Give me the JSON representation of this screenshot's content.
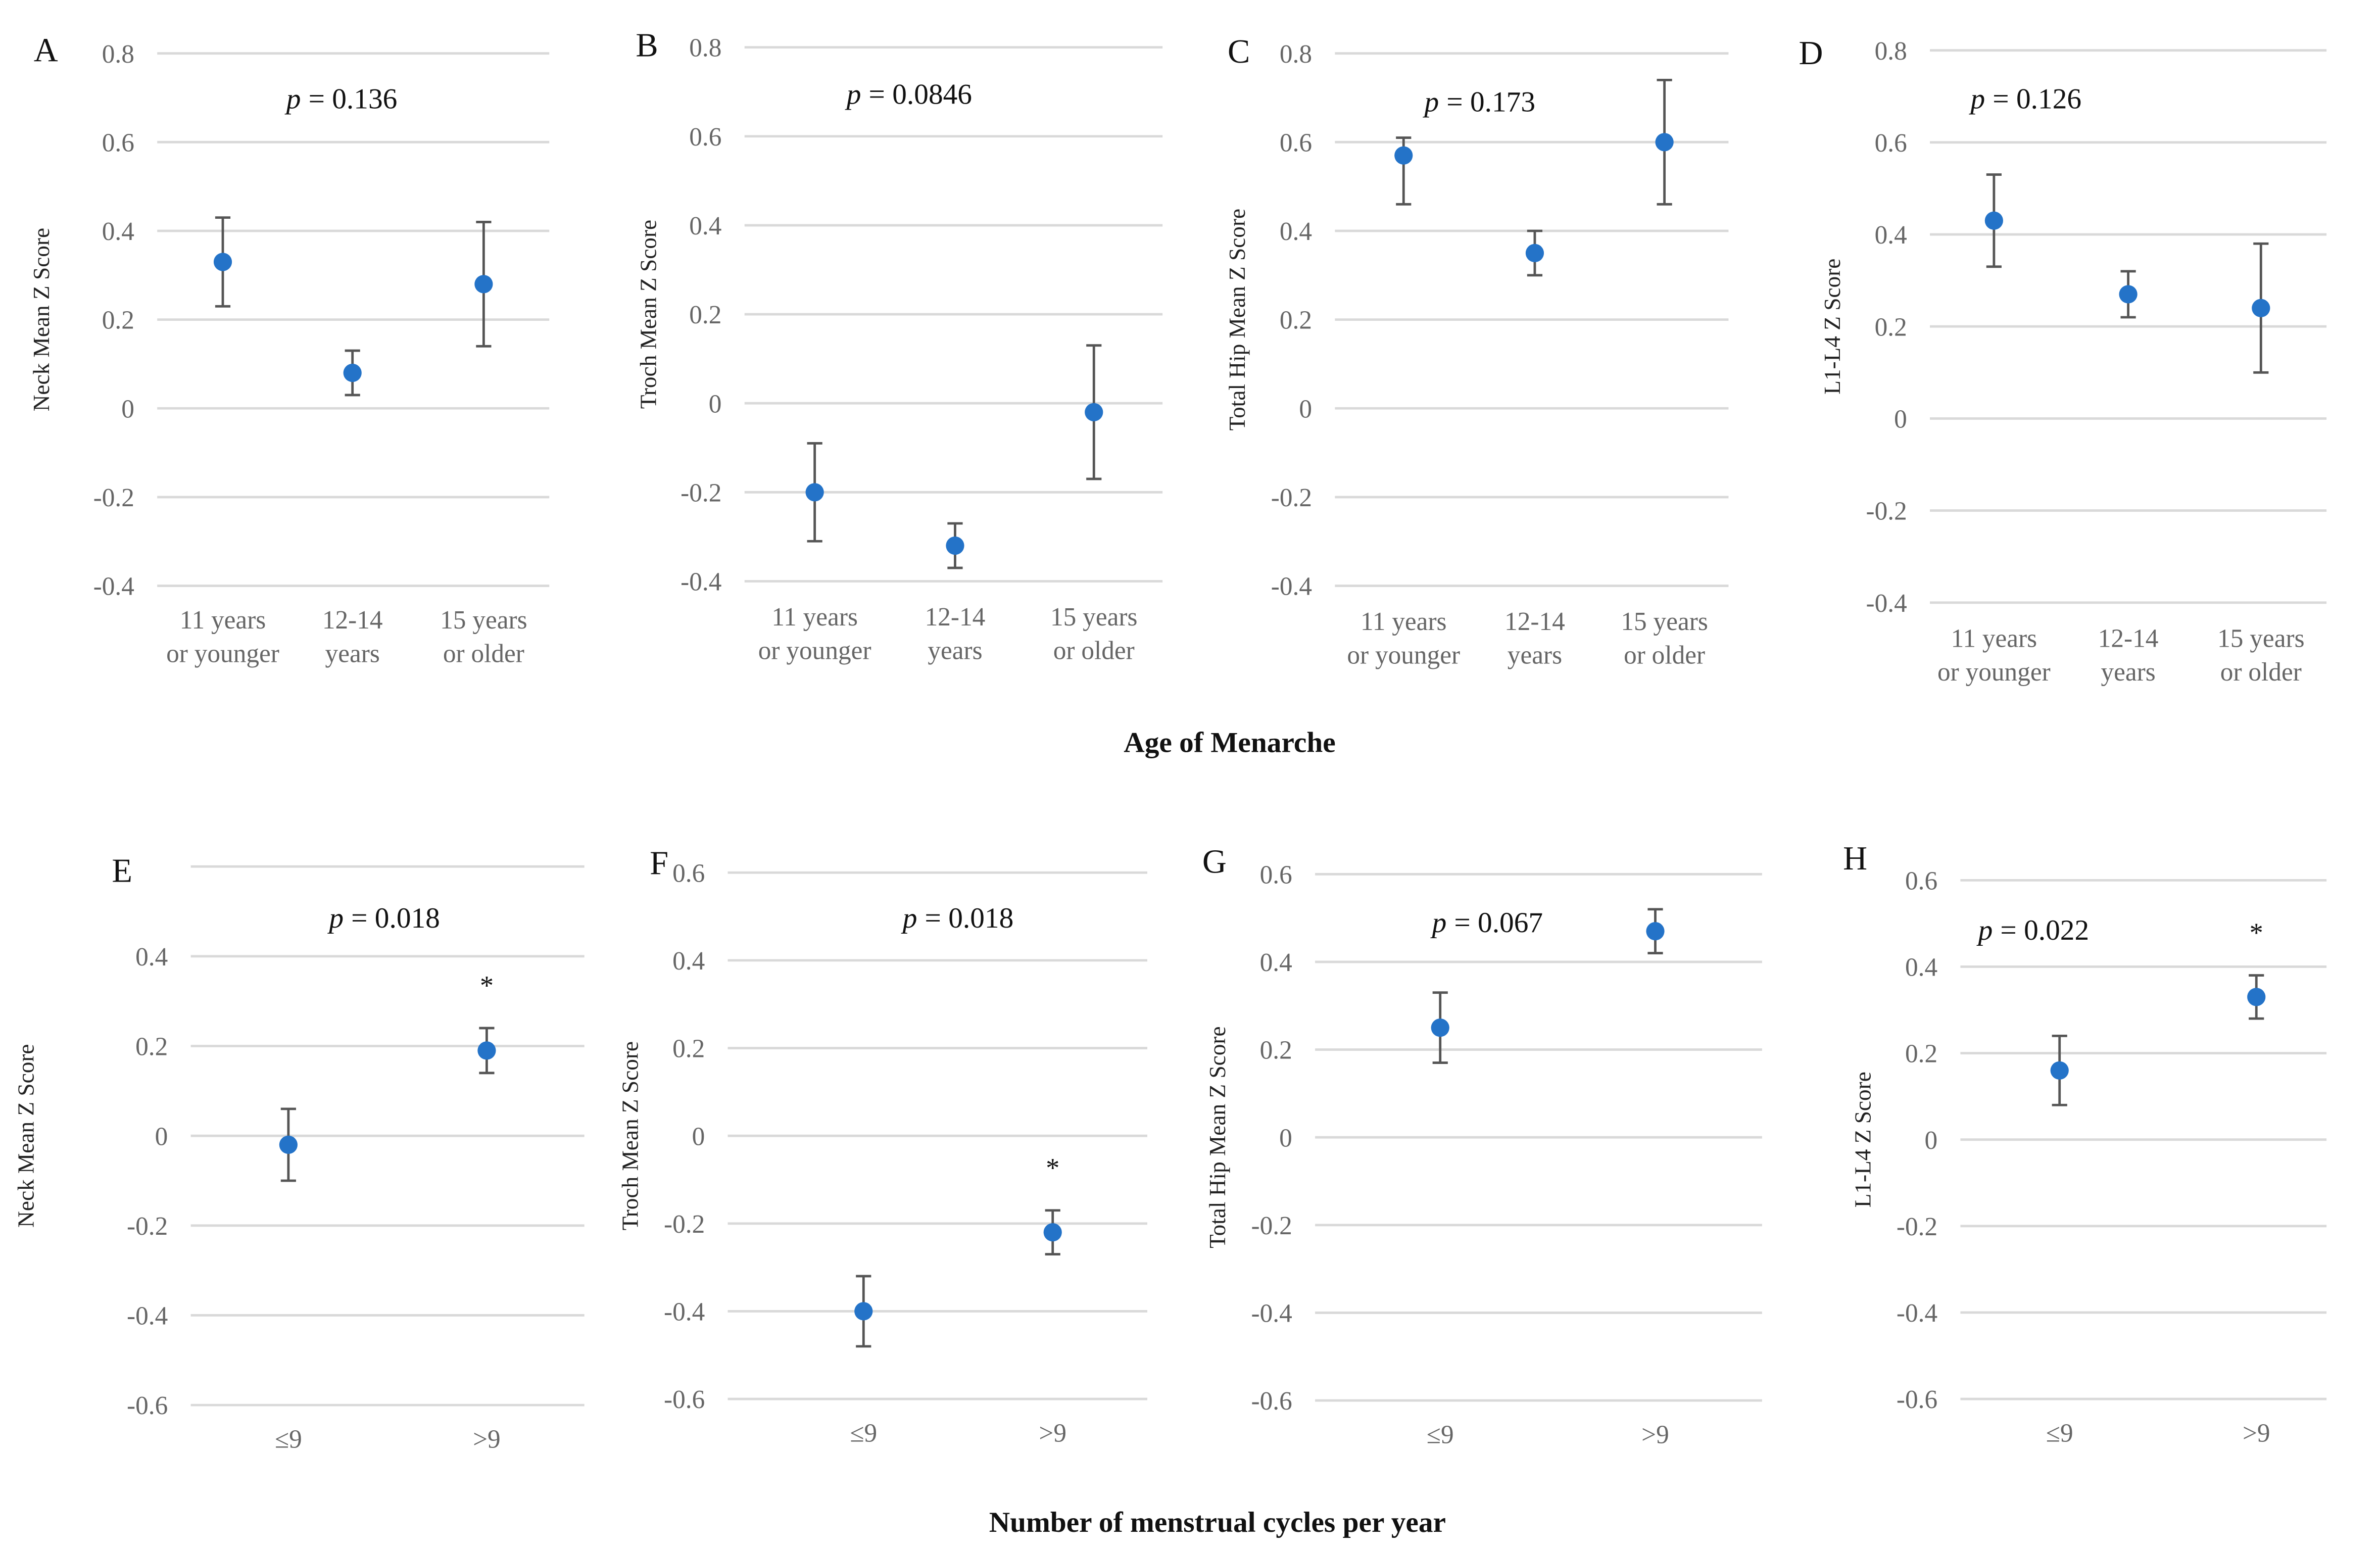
{
  "colors": {
    "point": "#2473c8",
    "error_bar": "#555555",
    "grid": "#d9d9d9",
    "tick": "#666666"
  },
  "row_titles": [
    "Age of Menarche",
    "Number of menstrual cycles per year"
  ],
  "chart_data": [
    {
      "type": "scatter",
      "panel": "A",
      "ylabel": "Neck Mean Z Score",
      "p_label": "p",
      "p_value": "= 0.136",
      "ylim": [
        -0.4,
        0.8
      ],
      "ticks": [
        "0.8",
        "0.6",
        "0.4",
        "0.2",
        "0",
        "-0.2",
        "-0.4"
      ],
      "tick_values": [
        0.8,
        0.6,
        0.4,
        0.2,
        0,
        -0.2,
        -0.4
      ],
      "categories": [
        [
          "11 years",
          "or younger"
        ],
        [
          "12-14",
          "years"
        ],
        [
          "15 years",
          "or older"
        ]
      ],
      "values": [
        0.33,
        0.08,
        0.28
      ],
      "err_low": [
        0.23,
        0.03,
        0.14
      ],
      "err_high": [
        0.43,
        0.13,
        0.42
      ],
      "significant": [
        false,
        false,
        false
      ]
    },
    {
      "type": "scatter",
      "panel": "B",
      "ylabel": "Troch Mean Z Score",
      "p_label": "p",
      "p_value": "= 0.0846",
      "ylim": [
        -0.4,
        0.8
      ],
      "ticks": [
        "0.8",
        "0.6",
        "0.4",
        "0.2",
        "0",
        "-0.2",
        "-0.4"
      ],
      "tick_values": [
        0.8,
        0.6,
        0.4,
        0.2,
        0,
        -0.2,
        -0.4
      ],
      "categories": [
        [
          "11 years",
          "or younger"
        ],
        [
          "12-14",
          "years"
        ],
        [
          "15 years",
          "or older"
        ]
      ],
      "values": [
        -0.2,
        -0.32,
        -0.02
      ],
      "err_low": [
        -0.31,
        -0.37,
        -0.17
      ],
      "err_high": [
        -0.09,
        -0.27,
        0.13
      ],
      "significant": [
        false,
        false,
        false
      ]
    },
    {
      "type": "scatter",
      "panel": "C",
      "ylabel": "Total Hip Mean Z Score",
      "p_label": "p",
      "p_value": "= 0.173",
      "ylim": [
        -0.4,
        0.8
      ],
      "ticks": [
        "0.8",
        "0.6",
        "0.4",
        "0.2",
        "0",
        "-0.2",
        "-0.4"
      ],
      "tick_values": [
        0.8,
        0.6,
        0.4,
        0.2,
        0,
        -0.2,
        -0.4
      ],
      "categories": [
        [
          "11 years",
          "or younger"
        ],
        [
          "12-14",
          "years"
        ],
        [
          "15 years",
          "or older"
        ]
      ],
      "values": [
        0.57,
        0.35,
        0.6
      ],
      "err_low": [
        0.46,
        0.3,
        0.46
      ],
      "err_high": [
        0.61,
        0.4,
        0.74
      ],
      "significant": [
        false,
        false,
        false
      ]
    },
    {
      "type": "scatter",
      "panel": "D",
      "ylabel": "L1-L4 Z Score",
      "p_label": "p",
      "p_value": "= 0.126",
      "ylim": [
        -0.4,
        0.8
      ],
      "ticks": [
        "0.8",
        "0.6",
        "0.4",
        "0.2",
        "0",
        "-0.2",
        "-0.4"
      ],
      "tick_values": [
        0.8,
        0.6,
        0.4,
        0.2,
        0,
        -0.2,
        -0.4
      ],
      "categories": [
        [
          "11 years",
          "or younger"
        ],
        [
          "12-14",
          "years"
        ],
        [
          "15 years",
          "or older"
        ]
      ],
      "values": [
        0.43,
        0.27,
        0.24
      ],
      "err_low": [
        0.33,
        0.22,
        0.1
      ],
      "err_high": [
        0.53,
        0.32,
        0.38
      ],
      "significant": [
        false,
        false,
        false
      ]
    },
    {
      "type": "scatter",
      "panel": "E",
      "ylabel": "Neck Mean Z Score",
      "p_label": "p",
      "p_value": "= 0.018",
      "ylim": [
        -0.6,
        0.6
      ],
      "ticks": [
        "0.4",
        "0.2",
        "0",
        "-0.2",
        "-0.4",
        "-0.6"
      ],
      "tick_values": [
        0.4,
        0.2,
        0,
        -0.2,
        -0.4,
        -0.6
      ],
      "categories": [
        [
          "≤9"
        ],
        [
          ">9"
        ]
      ],
      "values": [
        -0.02,
        0.19
      ],
      "err_low": [
        -0.1,
        0.14
      ],
      "err_high": [
        0.06,
        0.24
      ],
      "significant": [
        false,
        true
      ],
      "significance_mark": "*"
    },
    {
      "type": "scatter",
      "panel": "F",
      "ylabel": "Troch Mean Z Score",
      "p_label": "p",
      "p_value": "= 0.018",
      "ylim": [
        -0.6,
        0.6
      ],
      "ticks": [
        "0.6",
        "0.4",
        "0.2",
        "0",
        "-0.2",
        "-0.4",
        "-0.6"
      ],
      "tick_values": [
        0.6,
        0.4,
        0.2,
        0,
        -0.2,
        -0.4,
        -0.6
      ],
      "categories": [
        [
          "≤9"
        ],
        [
          ">9"
        ]
      ],
      "values": [
        -0.4,
        -0.22
      ],
      "err_low": [
        -0.48,
        -0.27
      ],
      "err_high": [
        -0.32,
        -0.17
      ],
      "significant": [
        false,
        true
      ],
      "significance_mark": "*"
    },
    {
      "type": "scatter",
      "panel": "G",
      "ylabel": "Total Hip Mean Z Score",
      "p_label": "p",
      "p_value": "= 0.067",
      "ylim": [
        -0.6,
        0.6
      ],
      "ticks": [
        "0.6",
        "0.4",
        "0.2",
        "0",
        "-0.2",
        "-0.4",
        "-0.6"
      ],
      "tick_values": [
        0.6,
        0.4,
        0.2,
        0,
        -0.2,
        -0.4,
        -0.6
      ],
      "categories": [
        [
          "≤9"
        ],
        [
          ">9"
        ]
      ],
      "values": [
        0.25,
        0.47
      ],
      "err_low": [
        0.17,
        0.42
      ],
      "err_high": [
        0.33,
        0.52
      ],
      "significant": [
        false,
        false
      ]
    },
    {
      "type": "scatter",
      "panel": "H",
      "ylabel": "L1-L4 Z Score",
      "p_label": "p",
      "p_value": "= 0.022",
      "ylim": [
        -0.6,
        0.6
      ],
      "ticks": [
        "0.6",
        "0.4",
        "0.2",
        "0",
        "-0.2",
        "-0.4",
        "-0.6"
      ],
      "tick_values": [
        0.6,
        0.4,
        0.2,
        0,
        -0.2,
        -0.4,
        -0.6
      ],
      "categories": [
        [
          "≤9"
        ],
        [
          ">9"
        ]
      ],
      "values": [
        0.16,
        0.33
      ],
      "err_low": [
        0.08,
        0.28
      ],
      "err_high": [
        0.24,
        0.38
      ],
      "significant": [
        false,
        true
      ],
      "significance_mark": "*"
    }
  ]
}
